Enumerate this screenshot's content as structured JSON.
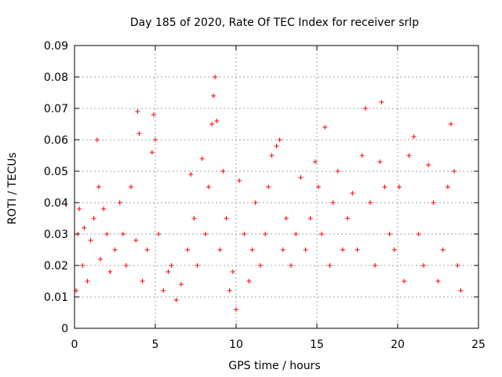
{
  "chart_data": {
    "type": "scatter",
    "title": "Day 185 of 2020, Rate Of TEC Index for receiver srlp",
    "xlabel": "GPS time / hours",
    "ylabel": "ROTI / TECUs",
    "xlim": [
      0,
      25
    ],
    "ylim": [
      0,
      0.09
    ],
    "xticks": [
      0,
      5,
      10,
      15,
      20,
      25
    ],
    "xtick_labels": [
      "0",
      "5",
      "10",
      "15",
      "20",
      "25"
    ],
    "yticks": [
      0,
      0.01,
      0.02,
      0.03,
      0.04,
      0.05,
      0.06,
      0.07,
      0.08,
      0.09
    ],
    "ytick_labels": [
      "0",
      "0.01",
      "0.02",
      "0.03",
      "0.04",
      "0.05",
      "0.06",
      "0.07",
      "0.08",
      "0.09"
    ],
    "grid": true,
    "marker": "plus",
    "series": [
      {
        "name": "ROTI",
        "color": "#ff0000",
        "x": [
          0.1,
          0.2,
          0.3,
          0.5,
          0.6,
          0.8,
          1.0,
          1.2,
          1.4,
          1.5,
          1.6,
          1.8,
          2.0,
          2.2,
          2.5,
          2.8,
          3.0,
          3.2,
          3.5,
          3.8,
          3.9,
          4.0,
          4.2,
          4.5,
          4.8,
          4.9,
          5.0,
          5.2,
          5.5,
          5.8,
          6.0,
          6.3,
          6.6,
          7.0,
          7.2,
          7.4,
          7.6,
          7.9,
          8.1,
          8.3,
          8.5,
          8.6,
          8.7,
          8.8,
          9.0,
          9.2,
          9.4,
          9.6,
          9.8,
          10.0,
          10.2,
          10.5,
          10.8,
          11.0,
          11.2,
          11.5,
          11.8,
          12.0,
          12.2,
          12.5,
          12.7,
          12.9,
          13.1,
          13.4,
          13.7,
          14.0,
          14.3,
          14.6,
          14.9,
          15.1,
          15.3,
          15.5,
          15.8,
          16.0,
          16.3,
          16.6,
          16.9,
          17.2,
          17.5,
          17.8,
          18.0,
          18.3,
          18.6,
          18.9,
          19.0,
          19.2,
          19.5,
          19.8,
          20.1,
          20.4,
          20.7,
          21.0,
          21.3,
          21.6,
          21.9,
          22.2,
          22.5,
          22.8,
          23.1,
          23.3,
          23.5,
          23.7,
          23.9
        ],
        "values": [
          0.012,
          0.03,
          0.038,
          0.02,
          0.032,
          0.015,
          0.028,
          0.035,
          0.06,
          0.045,
          0.022,
          0.038,
          0.03,
          0.018,
          0.025,
          0.04,
          0.03,
          0.02,
          0.045,
          0.028,
          0.069,
          0.062,
          0.015,
          0.025,
          0.056,
          0.068,
          0.06,
          0.03,
          0.012,
          0.018,
          0.02,
          0.009,
          0.014,
          0.025,
          0.049,
          0.035,
          0.02,
          0.054,
          0.03,
          0.045,
          0.065,
          0.074,
          0.08,
          0.066,
          0.025,
          0.05,
          0.035,
          0.012,
          0.018,
          0.006,
          0.047,
          0.03,
          0.015,
          0.025,
          0.04,
          0.02,
          0.03,
          0.045,
          0.055,
          0.058,
          0.06,
          0.025,
          0.035,
          0.02,
          0.03,
          0.048,
          0.025,
          0.035,
          0.053,
          0.045,
          0.03,
          0.064,
          0.02,
          0.04,
          0.05,
          0.025,
          0.035,
          0.043,
          0.025,
          0.055,
          0.07,
          0.04,
          0.02,
          0.053,
          0.072,
          0.045,
          0.03,
          0.025,
          0.045,
          0.015,
          0.055,
          0.061,
          0.03,
          0.02,
          0.052,
          0.04,
          0.015,
          0.025,
          0.045,
          0.065,
          0.05,
          0.02,
          0.012
        ]
      }
    ]
  }
}
